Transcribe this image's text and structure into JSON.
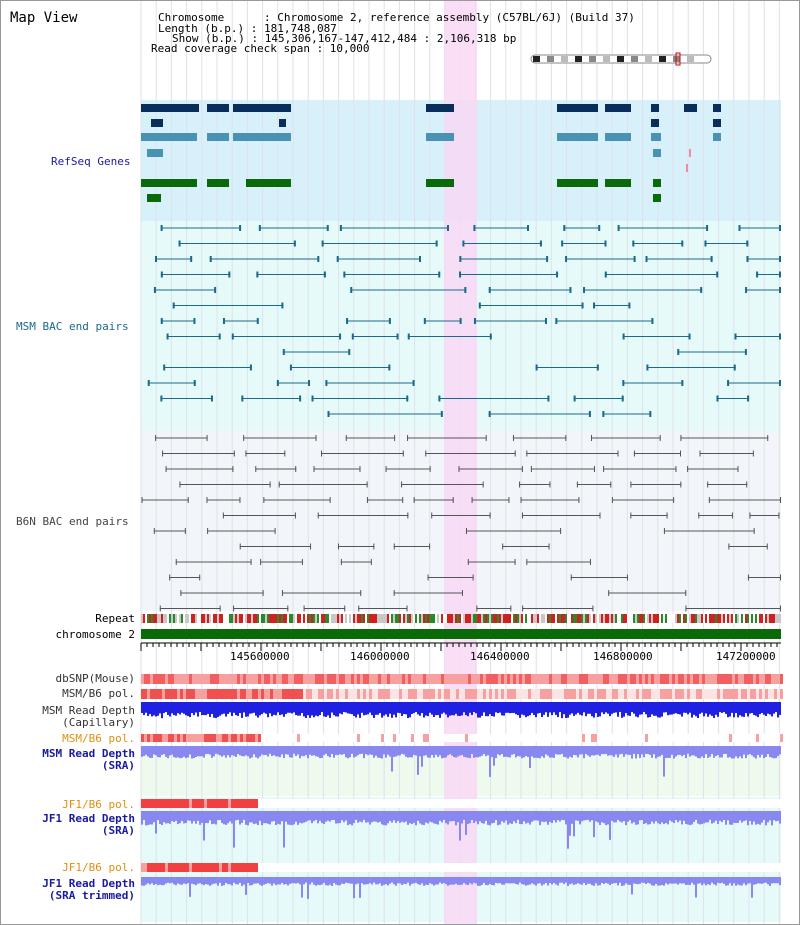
{
  "window": {
    "title": "Map View"
  },
  "header": {
    "chromosome_line": "Chromosome      : Chromosome 2, reference assembly (C57BL/6J) (Build 37)",
    "length_line": "Length (b.p.) : 181,748,087",
    "show_line": "Show (b.p.) : 145,306,167-147,412,484 : 2,106,318 bp",
    "coverage_line": "Read coverage check span : 10,000"
  },
  "tracks": {
    "refseq": "RefSeq Genes",
    "msm_bac": "MSM BAC end pairs",
    "b6n_bac": "B6N BAC end pairs",
    "repeat": "Repeat",
    "chromosome": "chromosome 2",
    "dbsnp": "dbSNP(Mouse)",
    "msm_b6_pol": "MSM/B6 pol.",
    "msm_depth_cap_1": "MSM Read Depth",
    "msm_depth_cap_2": "(Capillary)",
    "msm_b6_pol_sra": "MSM/B6 pol.",
    "msm_depth_sra_1": "MSM Read Depth",
    "msm_depth_sra_2": "(SRA)",
    "jf1_pol_1": "JF1/B6 pol.",
    "jf1_depth_1": "JF1 Read Depth",
    "jf1_depth_1b": "(SRA)",
    "jf1_pol_2": "JF1/B6 pol.",
    "jf1_depth_2": "JF1 Read Depth",
    "jf1_depth_2b": "(SRA trimmed)"
  },
  "axis": {
    "ticks": [
      "145600000",
      "146000000",
      "146400000",
      "146800000",
      "147200000"
    ]
  },
  "colors": {
    "refseq_bg": "#d8f0fa",
    "bac_bg": "#e6fafa",
    "highlight": "#f8d8f4",
    "gene_dark": "#0a2e5c",
    "gene_light": "#4a92b4",
    "gene_green": "#0a6a0a",
    "bac_line": "#1a6a8a",
    "b6n_line": "#555555",
    "chrom_green": "#0a6a0a",
    "depth_blue": "#2020e0",
    "sra_blue": "#8888f0"
  }
}
